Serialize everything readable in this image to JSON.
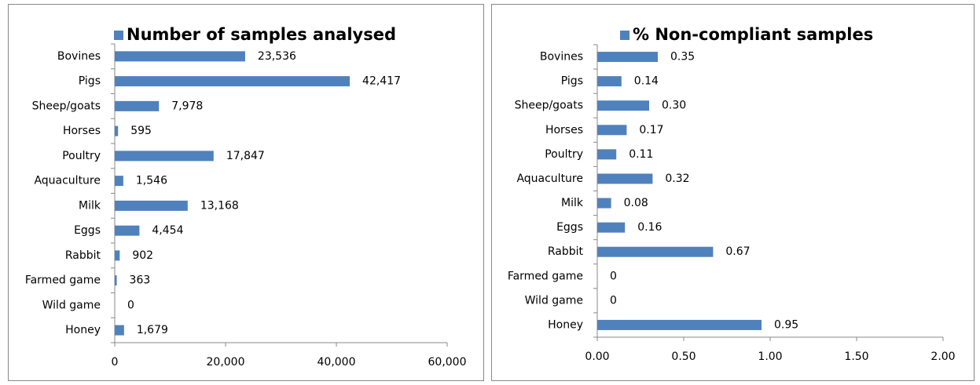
{
  "chart_data": [
    {
      "type": "bar",
      "orientation": "horizontal",
      "categories": [
        "Bovines",
        "Pigs",
        "Sheep/goats",
        "Horses",
        "Poultry",
        "Aquaculture",
        "Milk",
        "Eggs",
        "Rabbit",
        "Farmed game",
        "Wild game",
        "Honey"
      ],
      "series": [
        {
          "name": "Number of samples analysed",
          "color": "#4f81bd",
          "values": [
            23536,
            42417,
            7978,
            595,
            17847,
            1546,
            13168,
            4454,
            902,
            363,
            0,
            1679
          ],
          "value_labels": [
            "23,536",
            "42,417",
            "7,978",
            "595",
            "17,847",
            "1,546",
            "13,168",
            "4,454",
            "902",
            "363",
            "0",
            "1,679"
          ]
        }
      ],
      "xlim": [
        0,
        60000
      ],
      "xticks": [
        0,
        {
          "value": 20000,
          "label": "20,000"
        },
        {
          "value": 40000,
          "label": "40,000"
        },
        {
          "value": 60000,
          "label": "60,000"
        }
      ],
      "legend": "top"
    },
    {
      "type": "bar",
      "orientation": "horizontal",
      "categories": [
        "Bovines",
        "Pigs",
        "Sheep/goats",
        "Horses",
        "Poultry",
        "Aquaculture",
        "Milk",
        "Eggs",
        "Rabbit",
        "Farmed game",
        "Wild game",
        "Honey"
      ],
      "series": [
        {
          "name": "% Non-compliant samples",
          "color": "#4f81bd",
          "values": [
            0.35,
            0.14,
            0.3,
            0.17,
            0.11,
            0.32,
            0.08,
            0.16,
            0.67,
            0,
            0,
            0.95
          ],
          "value_labels": [
            "0.35",
            "0.14",
            "0.30",
            "0.17",
            "0.11",
            "0.32",
            "0.08",
            "0.16",
            "0.67",
            "0",
            "0",
            "0.95"
          ]
        }
      ],
      "xlim": [
        0,
        2
      ],
      "xticks": [
        {
          "value": 0,
          "label": "0.00"
        },
        {
          "value": 0.5,
          "label": "0.50"
        },
        {
          "value": 1,
          "label": "1.00"
        },
        {
          "value": 1.5,
          "label": "1.50"
        },
        {
          "value": 2,
          "label": "2.00"
        }
      ],
      "legend": "top"
    }
  ]
}
